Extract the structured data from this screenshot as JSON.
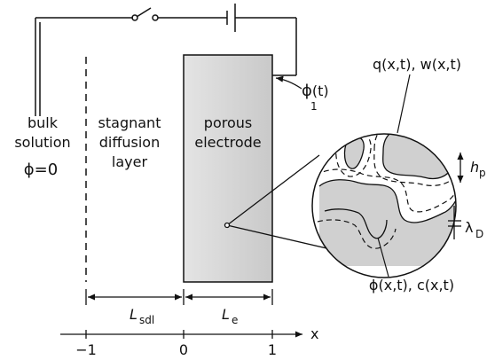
{
  "regions": {
    "bulk_line1": "bulk",
    "bulk_line2": "solution",
    "bulk_potential": "ϕ=0",
    "sdl_line1": "stagnant",
    "sdl_line2": "diffusion",
    "sdl_line3": "layer",
    "electrode_line1": "porous",
    "electrode_line2": "electrode"
  },
  "annotations": {
    "phi1": "ϕ",
    "phi1_sub": "1",
    "phi1_arg": "(t)",
    "qw": "q(x,t), w(x,t)",
    "phic": "ϕ(x,t), c(x,t)",
    "hp": "h",
    "hp_sub": "p",
    "lambda": "λ",
    "lambda_sub": "D"
  },
  "dimensions": {
    "L_sdl": "L",
    "L_sdl_sub": "sdl",
    "L_e": "L",
    "L_e_sub": "e"
  },
  "axis": {
    "label": "x",
    "ticks": [
      "−1",
      "0",
      "1"
    ]
  },
  "colors": {
    "electrode_fill": "#d6d6d6",
    "particle_fill": "#d0d0d0",
    "stroke": "#111111"
  }
}
